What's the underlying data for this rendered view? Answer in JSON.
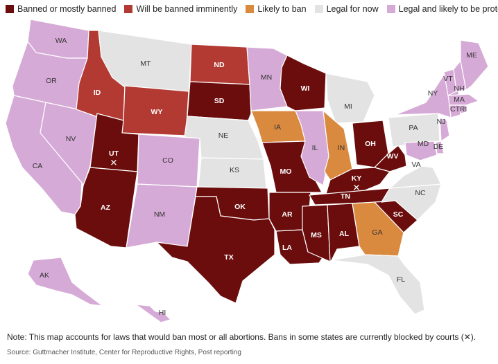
{
  "legend": [
    {
      "key": "banned",
      "label": "Banned or mostly banned",
      "color": "#6b0d0d"
    },
    {
      "key": "imminent",
      "label": "Will be banned imminently",
      "color": "#b33a32"
    },
    {
      "key": "likely",
      "label": "Likely to ban",
      "color": "#d98a3f"
    },
    {
      "key": "legal",
      "label": "Legal for now",
      "color": "#e3e3e3"
    },
    {
      "key": "protected",
      "label": "Legal and likely to be protected",
      "color": "#d6aad6"
    }
  ],
  "states": [
    {
      "abbr": "WA",
      "status": "protected"
    },
    {
      "abbr": "OR",
      "status": "protected"
    },
    {
      "abbr": "CA",
      "status": "protected"
    },
    {
      "abbr": "NV",
      "status": "protected"
    },
    {
      "abbr": "ID",
      "status": "imminent"
    },
    {
      "abbr": "MT",
      "status": "legal"
    },
    {
      "abbr": "WY",
      "status": "imminent"
    },
    {
      "abbr": "UT",
      "status": "banned",
      "blocked": true
    },
    {
      "abbr": "AZ",
      "status": "banned"
    },
    {
      "abbr": "CO",
      "status": "protected"
    },
    {
      "abbr": "NM",
      "status": "protected"
    },
    {
      "abbr": "ND",
      "status": "imminent"
    },
    {
      "abbr": "SD",
      "status": "banned"
    },
    {
      "abbr": "NE",
      "status": "legal"
    },
    {
      "abbr": "KS",
      "status": "legal"
    },
    {
      "abbr": "OK",
      "status": "banned"
    },
    {
      "abbr": "TX",
      "status": "banned"
    },
    {
      "abbr": "MN",
      "status": "protected"
    },
    {
      "abbr": "IA",
      "status": "likely"
    },
    {
      "abbr": "MO",
      "status": "banned"
    },
    {
      "abbr": "AR",
      "status": "banned"
    },
    {
      "abbr": "LA",
      "status": "banned"
    },
    {
      "abbr": "WI",
      "status": "banned"
    },
    {
      "abbr": "IL",
      "status": "protected"
    },
    {
      "abbr": "MI",
      "status": "legal"
    },
    {
      "abbr": "IN",
      "status": "likely"
    },
    {
      "abbr": "OH",
      "status": "banned"
    },
    {
      "abbr": "KY",
      "status": "banned",
      "blocked": true
    },
    {
      "abbr": "TN",
      "status": "banned"
    },
    {
      "abbr": "MS",
      "status": "banned"
    },
    {
      "abbr": "AL",
      "status": "banned"
    },
    {
      "abbr": "GA",
      "status": "likely"
    },
    {
      "abbr": "FL",
      "status": "legal"
    },
    {
      "abbr": "SC",
      "status": "banned"
    },
    {
      "abbr": "NC",
      "status": "legal"
    },
    {
      "abbr": "VA",
      "status": "legal"
    },
    {
      "abbr": "WV",
      "status": "banned"
    },
    {
      "abbr": "PA",
      "status": "legal"
    },
    {
      "abbr": "NY",
      "status": "protected"
    },
    {
      "abbr": "NJ",
      "status": "protected"
    },
    {
      "abbr": "DE",
      "status": "protected"
    },
    {
      "abbr": "MD",
      "status": "protected"
    },
    {
      "abbr": "VT",
      "status": "protected"
    },
    {
      "abbr": "NH",
      "status": "protected"
    },
    {
      "abbr": "MA",
      "status": "protected"
    },
    {
      "abbr": "CT",
      "status": "protected"
    },
    {
      "abbr": "RI",
      "status": "protected"
    },
    {
      "abbr": "ME",
      "status": "protected"
    },
    {
      "abbr": "AK",
      "status": "protected"
    },
    {
      "abbr": "HI",
      "status": "protected"
    }
  ],
  "blocked_mark": "✕",
  "note": "Note: This map accounts for laws that would ban most or all abortions. Bans in some states are currently blocked by courts (✕).",
  "source": "Source: Guttmacher Institute, Center for Reproductive Rights, Post reporting"
}
